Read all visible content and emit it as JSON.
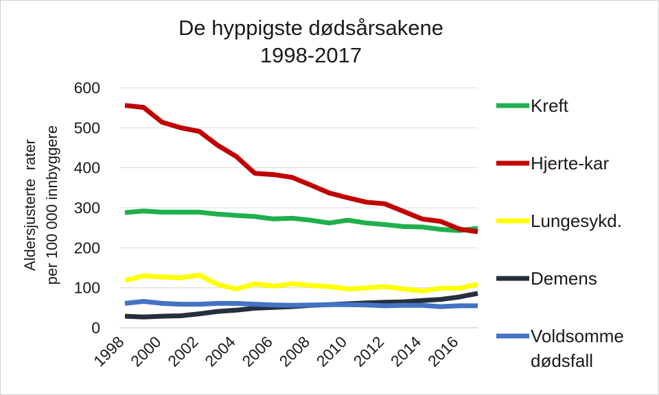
{
  "chart_data": {
    "type": "line",
    "title": [
      "De hyppigste dødsårsakene",
      "1998-2017"
    ],
    "ylabel": [
      "Aldersjusterte  rater",
      "per 100 000 innbyggere"
    ],
    "xlabel": "",
    "ylim": [
      0,
      600
    ],
    "yticks": [
      "0",
      "100",
      "200",
      "300",
      "400",
      "500",
      "600"
    ],
    "xticks": [
      "1998",
      "2000",
      "2002",
      "2004",
      "2006",
      "2008",
      "2010",
      "2012",
      "2014",
      "2016"
    ],
    "grid": "horizontal",
    "legend_position": "right",
    "x": [
      1998,
      1999,
      2000,
      2001,
      2002,
      2003,
      2004,
      2005,
      2006,
      2007,
      2008,
      2009,
      2010,
      2011,
      2012,
      2013,
      2014,
      2015,
      2016,
      2017
    ],
    "series": [
      {
        "name": "Kreft",
        "legend": [
          "Kreft"
        ],
        "color": "#1fb04b",
        "values": [
          288,
          292,
          289,
          289,
          289,
          284,
          281,
          278,
          272,
          274,
          269,
          262,
          269,
          262,
          258,
          253,
          252,
          246,
          243,
          249
        ]
      },
      {
        "name": "Hjerte-kar",
        "legend": [
          "Hjerte-kar"
        ],
        "color": "#c00000",
        "values": [
          556,
          551,
          514,
          500,
          491,
          456,
          428,
          386,
          383,
          376,
          357,
          337,
          325,
          314,
          310,
          291,
          272,
          266,
          247,
          240
        ]
      },
      {
        "name": "Lungesykd.",
        "legend": [
          "Lungesykd."
        ],
        "color": "#ffff00",
        "values": [
          118,
          130,
          127,
          125,
          132,
          108,
          97,
          110,
          104,
          110,
          106,
          103,
          97,
          100,
          103,
          97,
          92,
          99,
          99,
          109
        ]
      },
      {
        "name": "Demens",
        "legend": [
          "Demens"
        ],
        "color": "#262f3d",
        "values": [
          29,
          27,
          29,
          30,
          35,
          41,
          44,
          49,
          51,
          53,
          56,
          58,
          60,
          62,
          64,
          65,
          68,
          71,
          77,
          86
        ]
      },
      {
        "name": "Voldsomme dødsfall",
        "legend": [
          "Voldsomme",
          "dødsfall"
        ],
        "color": "#4472c4",
        "values": [
          61,
          66,
          61,
          59,
          59,
          61,
          61,
          59,
          57,
          56,
          57,
          58,
          58,
          57,
          55,
          56,
          56,
          53,
          55,
          55
        ]
      }
    ]
  }
}
